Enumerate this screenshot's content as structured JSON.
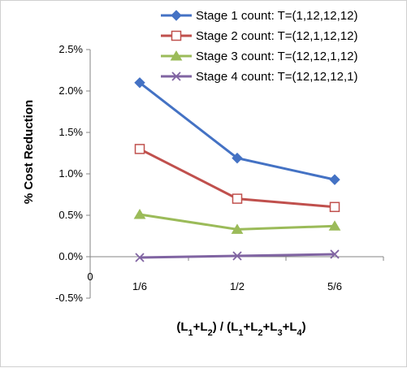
{
  "chart_data": {
    "type": "line",
    "categories": [
      "1/6",
      "1/2",
      "5/6"
    ],
    "origin_label": "0",
    "ylabel": "% Cost Reduction",
    "xlabel_parts": [
      "(L",
      "1",
      "+L",
      "2",
      ") / (L",
      "1",
      "+L",
      "2",
      "+L",
      "3",
      "+L",
      "4",
      ")"
    ],
    "ylim": [
      -0.5,
      2.5
    ],
    "yticks": [
      "-0.5%",
      "0.0%",
      "0.5%",
      "1.0%",
      "1.5%",
      "2.0%",
      "2.5%"
    ],
    "ytick_values": [
      -0.5,
      0.0,
      0.5,
      1.0,
      1.5,
      2.0,
      2.5
    ],
    "legend_position": "top-right",
    "series": [
      {
        "name": "Stage 1 count: T=(1,12,12,12)",
        "values": [
          2.1,
          1.19,
          0.93
        ],
        "color": "#4472C4",
        "marker": "diamond"
      },
      {
        "name": "Stage 2 count: T=(12,1,12,12)",
        "values": [
          1.3,
          0.7,
          0.6
        ],
        "color": "#C0504D",
        "marker": "open-square"
      },
      {
        "name": "Stage 3 count: T=(12,12,1,12)",
        "values": [
          0.51,
          0.33,
          0.37
        ],
        "color": "#9BBB59",
        "marker": "triangle"
      },
      {
        "name": "Stage 4 count: T=(12,12,12,1)",
        "values": [
          -0.01,
          0.01,
          0.03
        ],
        "color": "#8064A2",
        "marker": "x"
      }
    ]
  }
}
